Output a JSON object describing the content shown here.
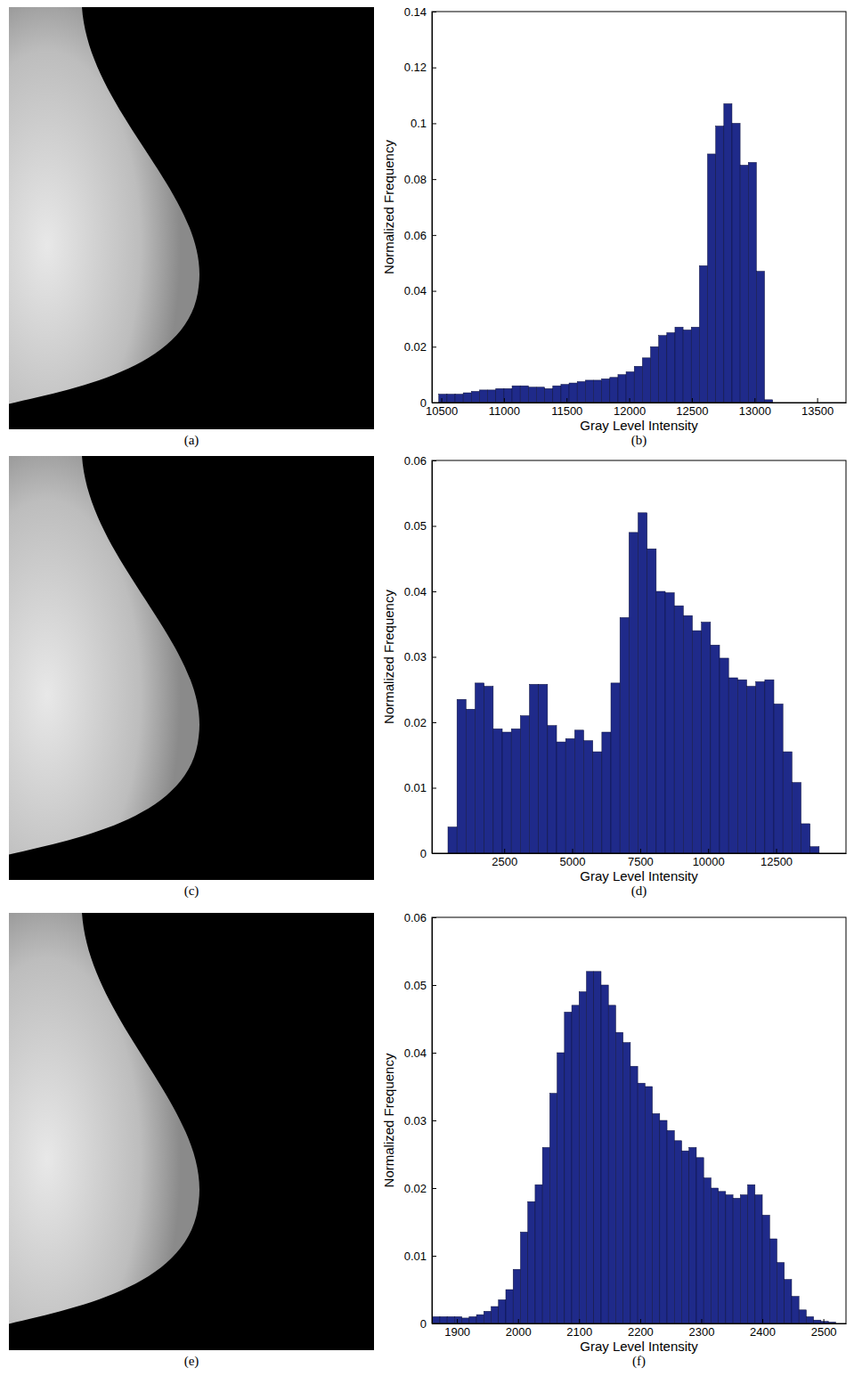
{
  "images": [
    {
      "label": "(a)"
    },
    {
      "label": "(c)"
    },
    {
      "label": "(e)"
    }
  ],
  "chart_data": [
    {
      "type": "histogram",
      "caption": "(b)",
      "xlabel": "Gray Level Intensity",
      "ylabel": "Normalized Frequency",
      "color": "#1f2a8a",
      "bins": [
        10480,
        10545,
        10610,
        10675,
        10740,
        10805,
        10870,
        10935,
        11000,
        11065,
        11130,
        11195,
        11260,
        11325,
        11390,
        11455,
        11520,
        11585,
        11650,
        11715,
        11780,
        11845,
        11910,
        11975,
        12040,
        12105,
        12170,
        12235,
        12300,
        12365,
        12430,
        12495,
        12560,
        12625,
        12690,
        12755,
        12820,
        12885,
        12950,
        13015,
        13080,
        13145
      ],
      "values": [
        0.003,
        0.003,
        0.003,
        0.0035,
        0.004,
        0.0045,
        0.0045,
        0.005,
        0.005,
        0.006,
        0.006,
        0.0055,
        0.0055,
        0.005,
        0.006,
        0.0065,
        0.007,
        0.0075,
        0.008,
        0.008,
        0.0085,
        0.009,
        0.01,
        0.011,
        0.013,
        0.016,
        0.02,
        0.024,
        0.025,
        0.027,
        0.026,
        0.027,
        0.049,
        0.089,
        0.099,
        0.107,
        0.1,
        0.085,
        0.086,
        0.047,
        0.001
      ],
      "xlim": [
        10425,
        13730
      ],
      "ylim": [
        0,
        0.14
      ],
      "xticks": [
        10500,
        11000,
        11500,
        12000,
        12500,
        13000,
        13500
      ],
      "yticks": [
        0,
        0.02,
        0.04,
        0.06,
        0.08,
        0.1,
        0.12,
        0.14
      ]
    },
    {
      "type": "histogram",
      "caption": "(d)",
      "xlabel": "Gray Level Intensity",
      "ylabel": "Normalized Frequency",
      "color": "#1f2a8a",
      "bins": [
        430,
        763,
        1096,
        1429,
        1762,
        2095,
        2428,
        2761,
        3094,
        3427,
        3760,
        4093,
        4426,
        4759,
        5092,
        5425,
        5758,
        6091,
        6424,
        6757,
        7090,
        7423,
        7756,
        8089,
        8422,
        8755,
        9088,
        9421,
        9754,
        10087,
        10420,
        10753,
        11086,
        11419,
        11752,
        12085,
        12418,
        12751,
        13084,
        13417,
        13750,
        14083
      ],
      "values": [
        0.004,
        0.0235,
        0.022,
        0.026,
        0.0255,
        0.019,
        0.0185,
        0.019,
        0.021,
        0.0258,
        0.0258,
        0.0195,
        0.017,
        0.0175,
        0.0188,
        0.0172,
        0.0155,
        0.0185,
        0.026,
        0.036,
        0.049,
        0.052,
        0.0465,
        0.04,
        0.0398,
        0.0378,
        0.0363,
        0.034,
        0.0353,
        0.0318,
        0.0298,
        0.0268,
        0.0265,
        0.0255,
        0.0262,
        0.0265,
        0.0228,
        0.0155,
        0.0108,
        0.0045,
        0.001
      ],
      "xlim": [
        -160,
        15070
      ],
      "ylim": [
        0,
        0.06
      ],
      "xticks": [
        2500,
        5000,
        7500,
        10000,
        12500
      ],
      "yticks": [
        0,
        0.01,
        0.02,
        0.03,
        0.04,
        0.05,
        0.06
      ]
    },
    {
      "type": "histogram",
      "caption": "(f)",
      "xlabel": "Gray Level Intensity",
      "ylabel": "Normalized Frequency",
      "color": "#1f2a8a",
      "bins": [
        1860,
        1872,
        1884,
        1896,
        1908,
        1920,
        1932,
        1944,
        1956,
        1968,
        1980,
        1992,
        2004,
        2016,
        2028,
        2040,
        2052,
        2064,
        2076,
        2088,
        2100,
        2112,
        2124,
        2136,
        2148,
        2160,
        2172,
        2184,
        2196,
        2208,
        2220,
        2232,
        2244,
        2256,
        2268,
        2280,
        2292,
        2304,
        2316,
        2328,
        2340,
        2352,
        2364,
        2376,
        2388,
        2400,
        2412,
        2424,
        2436,
        2448,
        2460,
        2472,
        2484,
        2496,
        2508,
        2520
      ],
      "values": [
        0.001,
        0.001,
        0.001,
        0.001,
        0.0008,
        0.001,
        0.0013,
        0.0018,
        0.0025,
        0.0035,
        0.005,
        0.008,
        0.0135,
        0.018,
        0.0205,
        0.026,
        0.034,
        0.04,
        0.046,
        0.047,
        0.049,
        0.052,
        0.052,
        0.05,
        0.047,
        0.043,
        0.0415,
        0.038,
        0.0355,
        0.035,
        0.031,
        0.03,
        0.0285,
        0.027,
        0.0255,
        0.026,
        0.0245,
        0.0215,
        0.02,
        0.0195,
        0.019,
        0.0185,
        0.019,
        0.0205,
        0.019,
        0.016,
        0.0125,
        0.009,
        0.0065,
        0.004,
        0.002,
        0.001,
        0.0005,
        0.0003,
        0.0002
      ],
      "xlim": [
        1859,
        2537
      ],
      "ylim": [
        0,
        0.06
      ],
      "xticks": [
        1900,
        2000,
        2100,
        2200,
        2300,
        2400,
        2500
      ],
      "yticks": [
        0,
        0.01,
        0.02,
        0.03,
        0.04,
        0.05,
        0.06
      ]
    }
  ]
}
